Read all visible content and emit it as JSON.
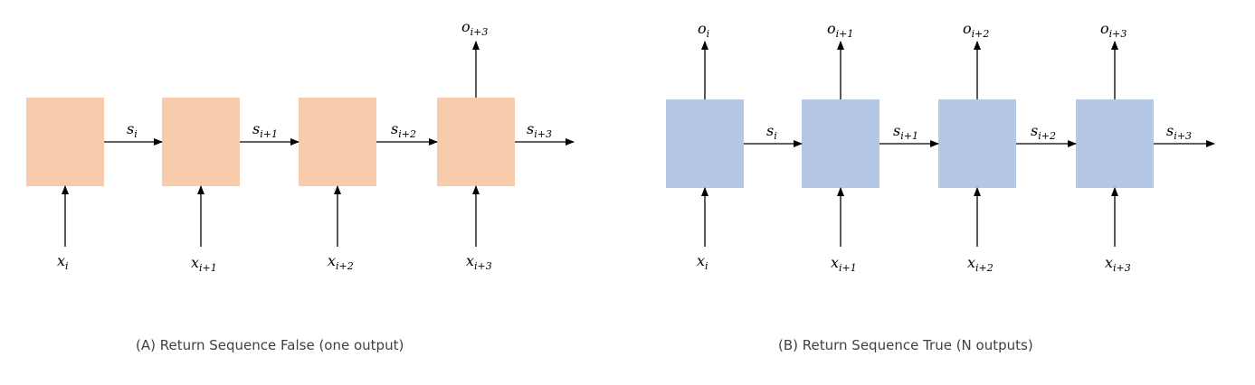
{
  "diagram_a": {
    "caption": "(A) Return Sequence False (one output)",
    "inputs": [
      {
        "base": "x",
        "sub": "i"
      },
      {
        "base": "x",
        "sub": "i+1"
      },
      {
        "base": "x",
        "sub": "i+2"
      },
      {
        "base": "x",
        "sub": "i+3"
      }
    ],
    "states": [
      {
        "base": "s",
        "sub": "i"
      },
      {
        "base": "s",
        "sub": "i+1"
      },
      {
        "base": "s",
        "sub": "i+2"
      },
      {
        "base": "s",
        "sub": "i+3"
      }
    ],
    "outputs": [
      {
        "base": "o",
        "sub": "i+3"
      }
    ]
  },
  "diagram_b": {
    "caption": "(B) Return Sequence True (N outputs)",
    "inputs": [
      {
        "base": "x",
        "sub": "i"
      },
      {
        "base": "x",
        "sub": "i+1"
      },
      {
        "base": "x",
        "sub": "i+2"
      },
      {
        "base": "x",
        "sub": "i+3"
      }
    ],
    "states": [
      {
        "base": "s",
        "sub": "i"
      },
      {
        "base": "s",
        "sub": "i+1"
      },
      {
        "base": "s",
        "sub": "i+2"
      },
      {
        "base": "s",
        "sub": "i+3"
      }
    ],
    "outputs": [
      {
        "base": "o",
        "sub": "i"
      },
      {
        "base": "o",
        "sub": "i+1"
      },
      {
        "base": "o",
        "sub": "i+2"
      },
      {
        "base": "o",
        "sub": "i+3"
      }
    ]
  },
  "colors": {
    "box_a": "#f8cbad",
    "box_b": "#b4c7e7"
  }
}
